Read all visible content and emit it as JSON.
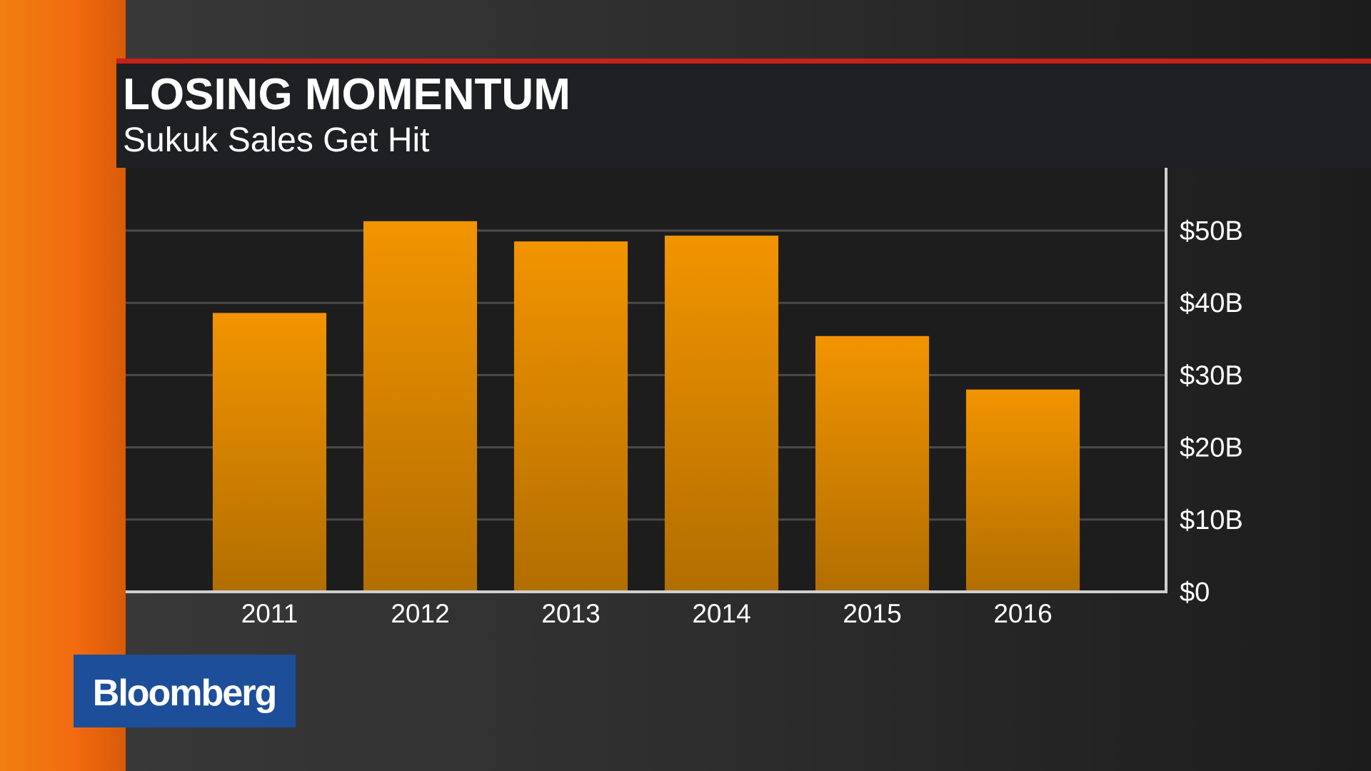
{
  "chart_data": {
    "type": "bar",
    "title": "LOSING MOMENTUM",
    "subtitle": "Sukuk Sales Get Hit",
    "categories": [
      "2011",
      "2012",
      "2013",
      "2014",
      "2015",
      "2016"
    ],
    "values": [
      38.6,
      51.3,
      48.5,
      49.3,
      35.4,
      28.0
    ],
    "color": "#f29400",
    "ylim": [
      0,
      58.4
    ],
    "yticks": [
      {
        "value": 0,
        "label": "$0"
      },
      {
        "value": 10,
        "label": "$10B"
      },
      {
        "value": 20,
        "label": "$20B"
      },
      {
        "value": 30,
        "label": "$30B"
      },
      {
        "value": 40,
        "label": "$40B"
      },
      {
        "value": 50,
        "label": "$50B"
      }
    ],
    "grid": true
  },
  "branding": {
    "logo": "Bloomberg"
  }
}
